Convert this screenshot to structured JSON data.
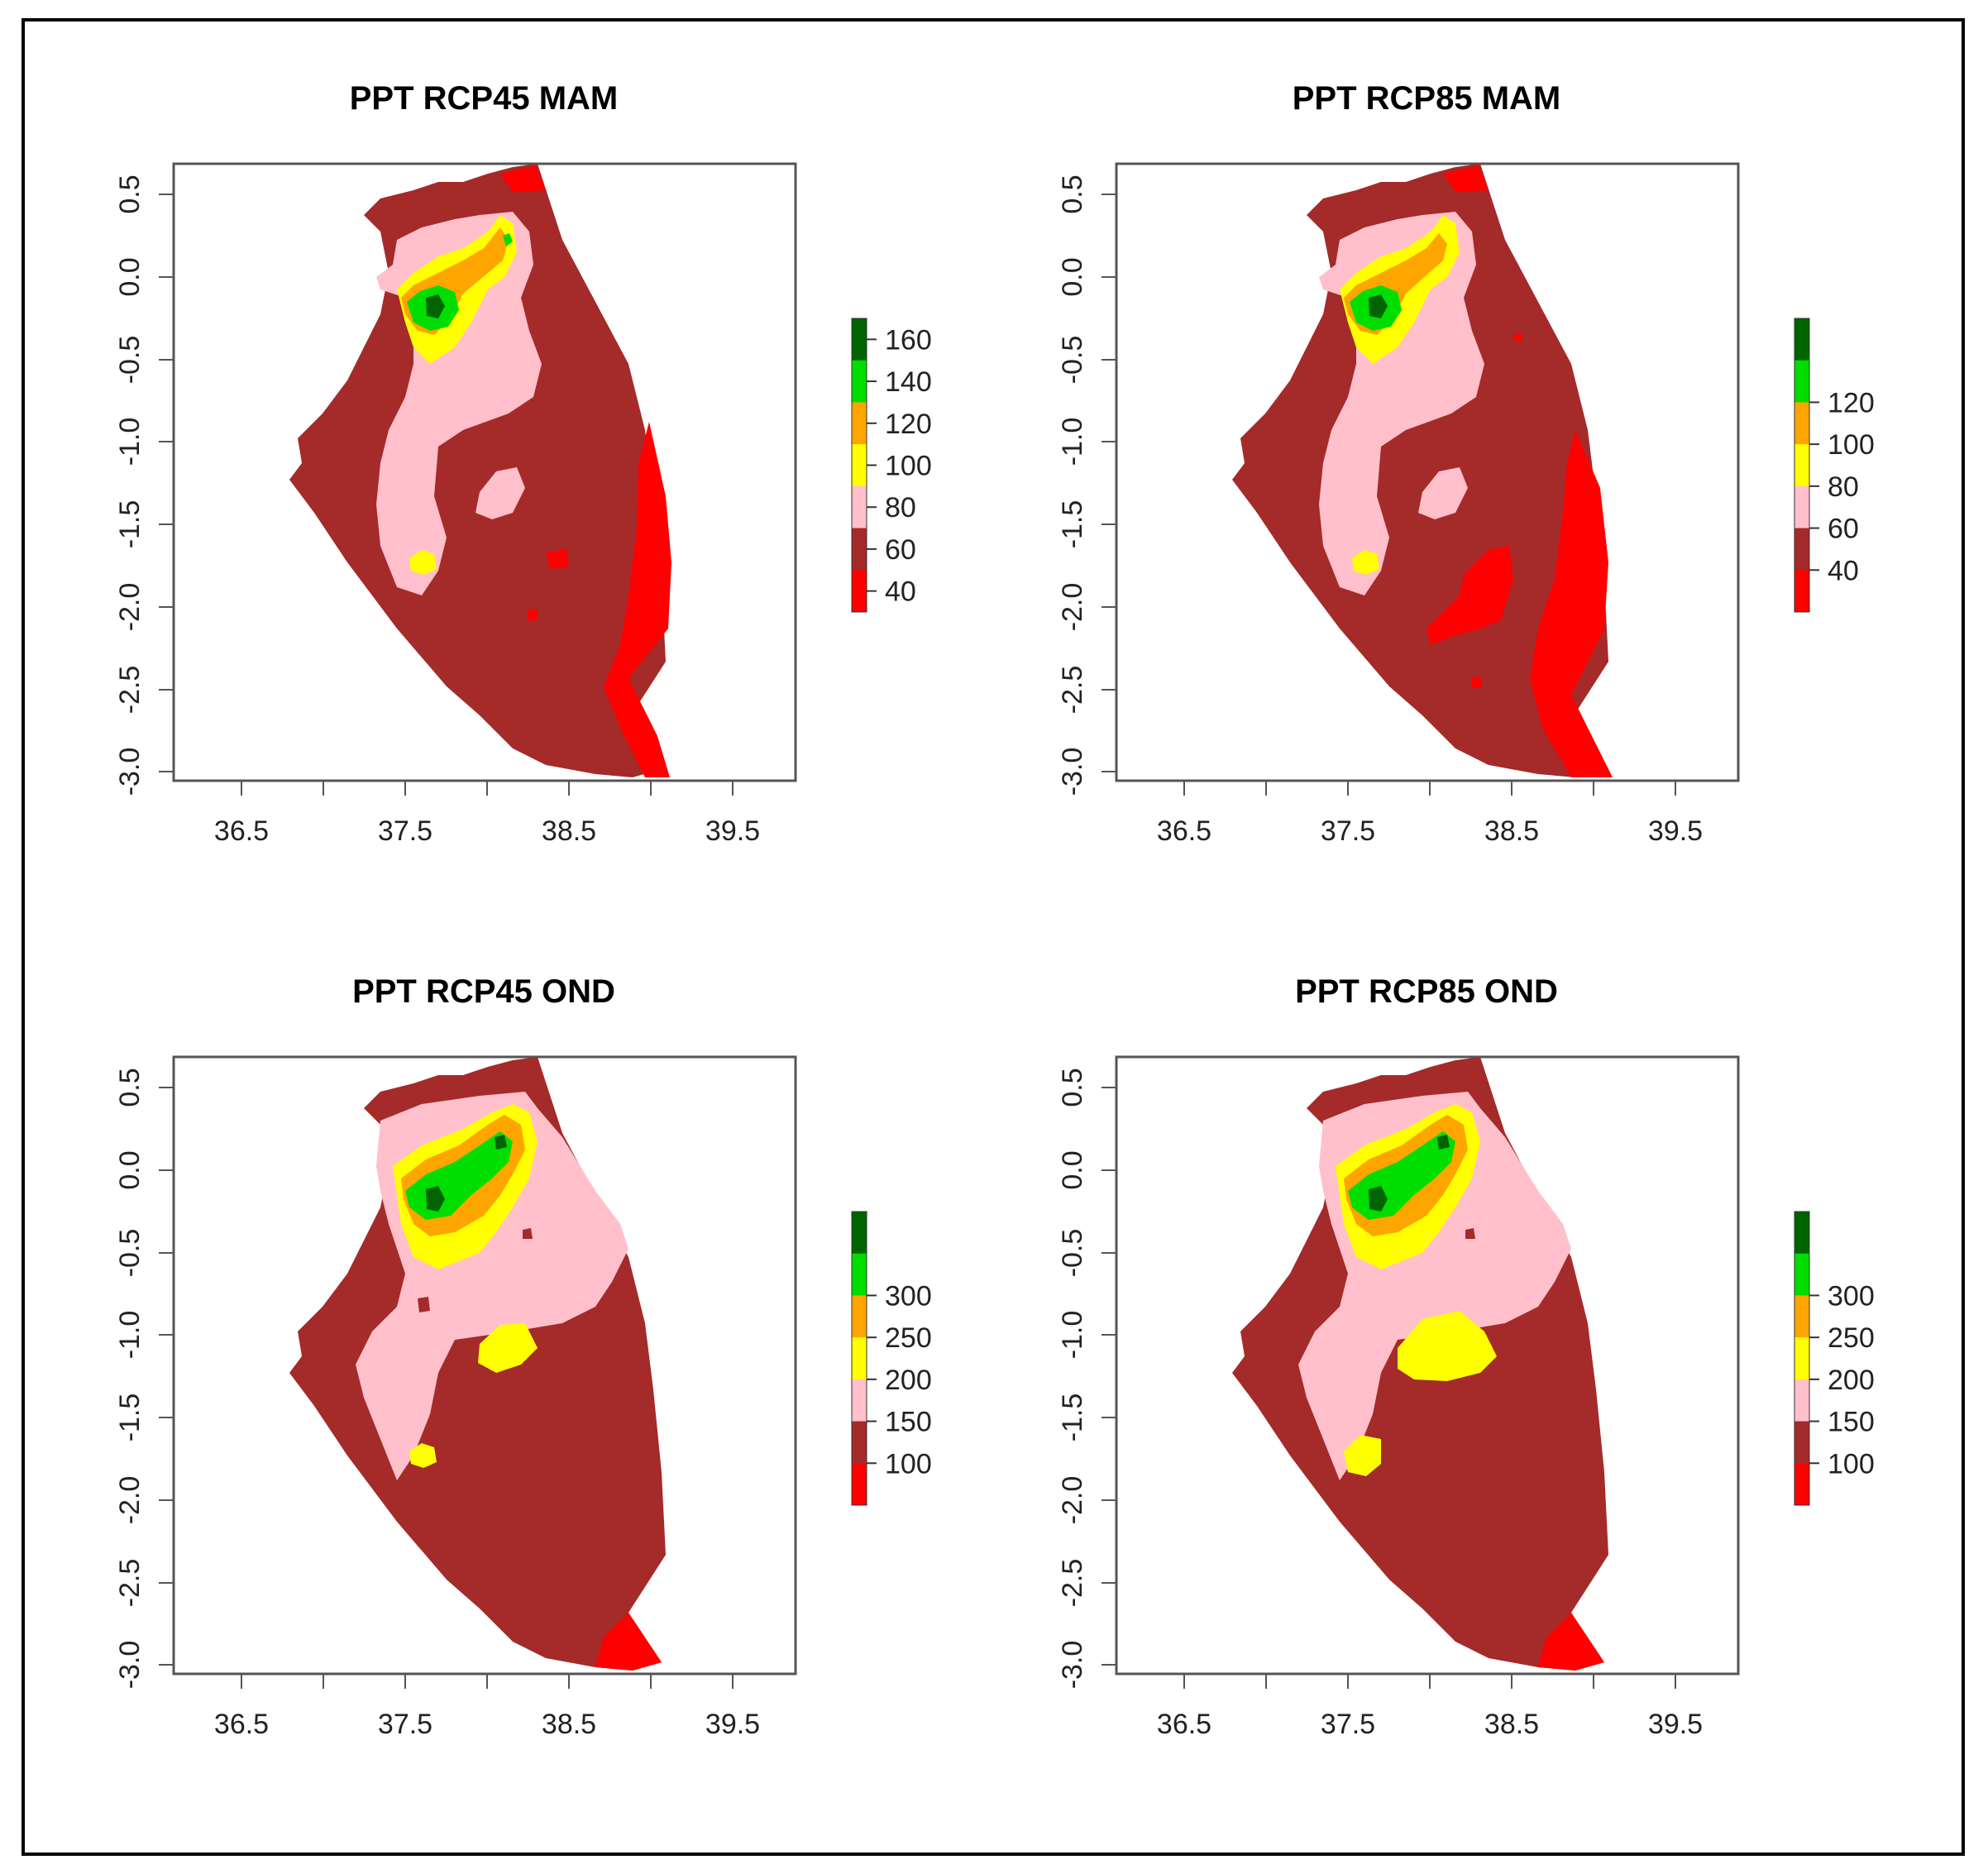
{
  "figure": {
    "colors": {
      "red": "#ff0000",
      "brown": "#a52a2a",
      "pink": "#ffc0cb",
      "yellow": "#ffff00",
      "orange": "#ffa500",
      "green": "#00dd00",
      "darkgreen": "#006400",
      "frame": "#000000"
    },
    "panels": [
      {
        "title": "PPT RCP45 MAM",
        "x_ticks": [
          "36.5",
          "37.5",
          "38.5",
          "39.5"
        ],
        "y_ticks": [
          "0.5",
          "0.0",
          "-0.5",
          "-1.0",
          "-1.5",
          "-2.0",
          "-2.5",
          "-3.0"
        ],
        "legend_labels": [
          "160",
          "140",
          "120",
          "100",
          "80",
          "60",
          "40"
        ],
        "legend_colors": [
          "#006400",
          "#00dd00",
          "#ffa500",
          "#ffff00",
          "#ffc0cb",
          "#a52a2a",
          "#ff0000"
        ]
      },
      {
        "title": "PPT RCP85 MAM",
        "x_ticks": [
          "36.5",
          "37.5",
          "38.5",
          "39.5"
        ],
        "y_ticks": [
          "0.5",
          "0.0",
          "-0.5",
          "-1.0",
          "-1.5",
          "-2.0",
          "-2.5",
          "-3.0"
        ],
        "legend_labels": [
          "120",
          "100",
          "80",
          "60",
          "40"
        ],
        "legend_colors": [
          "#006400",
          "#00dd00",
          "#ffa500",
          "#ffff00",
          "#ffc0cb",
          "#a52a2a",
          "#ff0000"
        ]
      },
      {
        "title": "PPT RCP45 OND",
        "x_ticks": [
          "36.5",
          "37.5",
          "38.5",
          "39.5"
        ],
        "y_ticks": [
          "0.5",
          "0.0",
          "-0.5",
          "-1.0",
          "-1.5",
          "-2.0",
          "-2.5",
          "-3.0"
        ],
        "legend_labels": [
          "300",
          "250",
          "200",
          "150",
          "100"
        ],
        "legend_colors": [
          "#006400",
          "#00dd00",
          "#ffa500",
          "#ffff00",
          "#ffc0cb",
          "#a52a2a",
          "#ff0000"
        ]
      },
      {
        "title": "PPT RCP85 OND",
        "x_ticks": [
          "36.5",
          "37.5",
          "38.5",
          "39.5"
        ],
        "y_ticks": [
          "0.5",
          "0.0",
          "-0.5",
          "-1.0",
          "-1.5",
          "-2.0",
          "-2.5",
          "-3.0"
        ],
        "legend_labels": [
          "300",
          "250",
          "200",
          "150",
          "100"
        ],
        "legend_colors": [
          "#006400",
          "#00dd00",
          "#ffa500",
          "#ffff00",
          "#ffc0cb",
          "#a52a2a",
          "#ff0000"
        ]
      }
    ]
  }
}
